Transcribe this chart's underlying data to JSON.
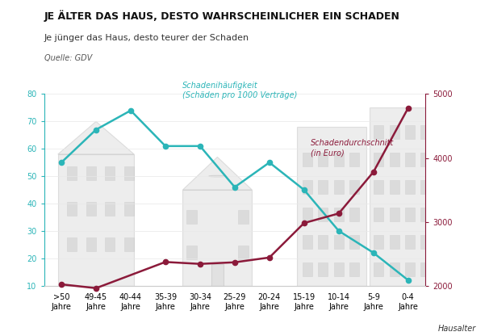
{
  "x_labels": [
    ">50\nJahre",
    "49-45\nJahre",
    "40-44\nJahre",
    "35-39\nJahre",
    "30-34\nJahre",
    "25-29\nJahre",
    "20-24\nJahre",
    "15-19\nJahre",
    "10-14\nJahre",
    "5-9\nJahre",
    "0-4\nJahre"
  ],
  "haeufigkeit": [
    55,
    67,
    74,
    61,
    61,
    46,
    55,
    45,
    30,
    22,
    12
  ],
  "durchschnitt_right": [
    2020,
    1960,
    null,
    2370,
    2340,
    2365,
    2440,
    2980,
    3130,
    3780,
    4780
  ],
  "haeufigkeit_color": "#2BB5B8",
  "durchschnitt_color": "#8B1A3A",
  "bg_color": "#ffffff",
  "title": "JE ÄLTER DAS HAUS, DESTO WAHRSCHEINLICHER EIN SCHADEN",
  "subtitle": "Je jünger das Haus, desto teurer der Schaden",
  "source": "Quelle: GDV",
  "xlabel": "Hausalter",
  "ylim_left": [
    10,
    80
  ],
  "ylim_right": [
    2000,
    5000
  ],
  "yticks_left": [
    10,
    20,
    30,
    40,
    50,
    60,
    70,
    80
  ],
  "yticks_right": [
    2000,
    3000,
    4000,
    5000
  ],
  "label_haeufigkeit": "Schadenihäufigkeit\n(Schäden pro 1000 Verträge)",
  "label_durchschnitt": "Schadendurchschnitt\n(in Euro)",
  "title_fontsize": 9,
  "subtitle_fontsize": 8,
  "source_fontsize": 7,
  "axis_fontsize": 7,
  "annotation_fontsize": 7,
  "silhouette_color": "#cccccc",
  "silhouette_edge": "#b0b0b0",
  "silhouette_alpha": 0.35,
  "window_color": "#bbbbbb",
  "window_alpha": 0.4
}
